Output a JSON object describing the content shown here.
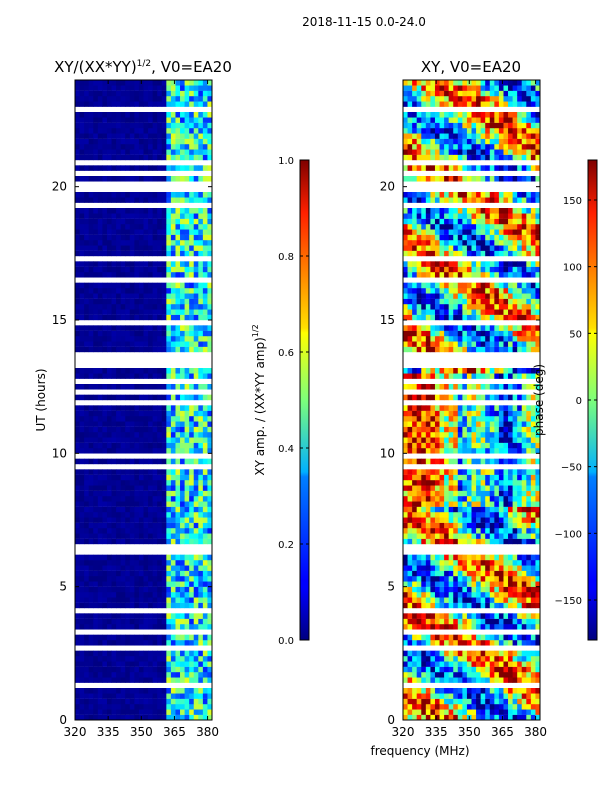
{
  "chart_data": [
    {
      "type": "heatmap",
      "title": "XY/(XX*YY)^1/2, V0=EA20",
      "xlabel": "frequency (MHz)",
      "ylabel": "UT (hours)",
      "xlim": [
        320,
        382
      ],
      "ylim": [
        0,
        24
      ],
      "xticks": [
        "320",
        "335",
        "350",
        "365",
        "380"
      ],
      "yticks": [
        "0",
        "5",
        "10",
        "15",
        "20"
      ],
      "colorbar": {
        "label": "XY amp. / (XX*YY amp)^1/2",
        "range": [
          0.0,
          1.0
        ],
        "ticks": [
          "0.0",
          "0.2",
          "0.4",
          "0.6",
          "0.8",
          "1.0"
        ],
        "colormap": "jet"
      }
    },
    {
      "type": "heatmap",
      "title": "XY, V0=EA20",
      "xlabel": "frequency (MHz)",
      "ylabel": "",
      "xlim": [
        320,
        382
      ],
      "ylim": [
        0,
        24
      ],
      "xticks": [
        "320",
        "335",
        "350",
        "365",
        "380"
      ],
      "yticks": [
        "0",
        "5",
        "10",
        "15",
        "20"
      ],
      "colorbar": {
        "label": "phase (deg)",
        "range": [
          -180,
          180
        ],
        "ticks": [
          "-150",
          "-100",
          "-50",
          "0",
          "50",
          "100",
          "150"
        ],
        "colormap": "jet"
      }
    }
  ],
  "figure": {
    "suptitle": "2018-11-15 0.0-24.0",
    "shared_xlabel": "frequency (MHz)"
  },
  "titles": {
    "left_base": "XY/(XX*YY)",
    "left_exp": "1/2",
    "left_suffix": ", V0=EA20",
    "cb1_base": "XY amp. / (XX*YY amp)",
    "cb1_exp": "1/2"
  },
  "colors": {
    "jet_low": "#00007f",
    "jet_high": "#7f0000"
  }
}
